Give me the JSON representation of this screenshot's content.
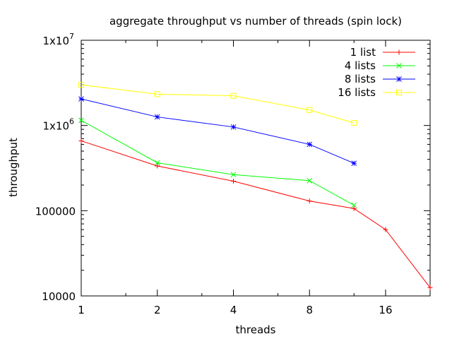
{
  "chart_data": {
    "type": "line",
    "title": "aggregate throughput vs number of threads (spin lock)",
    "xlabel": "threads",
    "ylabel": "throughput",
    "x_scale": "log2",
    "y_scale": "log10",
    "xlim": [
      1,
      24
    ],
    "ylim": [
      10000,
      10000000
    ],
    "x_ticks": [
      {
        "value": 1,
        "label": "1"
      },
      {
        "value": 2,
        "label": "2"
      },
      {
        "value": 4,
        "label": "4"
      },
      {
        "value": 8,
        "label": "8"
      },
      {
        "value": 16,
        "label": "16"
      }
    ],
    "y_ticks": [
      {
        "value": 10000,
        "label": "10000",
        "base": "",
        "exp": ""
      },
      {
        "value": 100000,
        "label": "100000",
        "base": "",
        "exp": ""
      },
      {
        "value": 1000000,
        "label": "",
        "base": "1x10",
        "exp": "6"
      },
      {
        "value": 10000000,
        "label": "",
        "base": "1x10",
        "exp": "7"
      }
    ],
    "grid": false,
    "legend_position": "top-right",
    "series": [
      {
        "name": "1 list",
        "color": "#ff0000",
        "marker": "plus",
        "points": [
          {
            "x": 1,
            "y": 660000
          },
          {
            "x": 2,
            "y": 335000
          },
          {
            "x": 4,
            "y": 222000
          },
          {
            "x": 8,
            "y": 130000
          },
          {
            "x": 12,
            "y": 106000
          },
          {
            "x": 16,
            "y": 60000
          },
          {
            "x": 24,
            "y": 12500
          }
        ]
      },
      {
        "name": "4 lists",
        "color": "#00ff00",
        "marker": "x",
        "points": [
          {
            "x": 1,
            "y": 1150000
          },
          {
            "x": 2,
            "y": 365000
          },
          {
            "x": 4,
            "y": 265000
          },
          {
            "x": 8,
            "y": 225000
          },
          {
            "x": 12,
            "y": 116000
          }
        ]
      },
      {
        "name": "8 lists",
        "color": "#0000ff",
        "marker": "star",
        "points": [
          {
            "x": 1,
            "y": 2050000
          },
          {
            "x": 2,
            "y": 1260000
          },
          {
            "x": 4,
            "y": 960000
          },
          {
            "x": 8,
            "y": 600000
          },
          {
            "x": 12,
            "y": 360000
          }
        ]
      },
      {
        "name": "16 lists",
        "color": "#ffff00",
        "marker": "square",
        "points": [
          {
            "x": 1,
            "y": 3000000
          },
          {
            "x": 2,
            "y": 2330000
          },
          {
            "x": 4,
            "y": 2230000
          },
          {
            "x": 8,
            "y": 1520000
          },
          {
            "x": 12,
            "y": 1070000
          }
        ]
      }
    ]
  }
}
